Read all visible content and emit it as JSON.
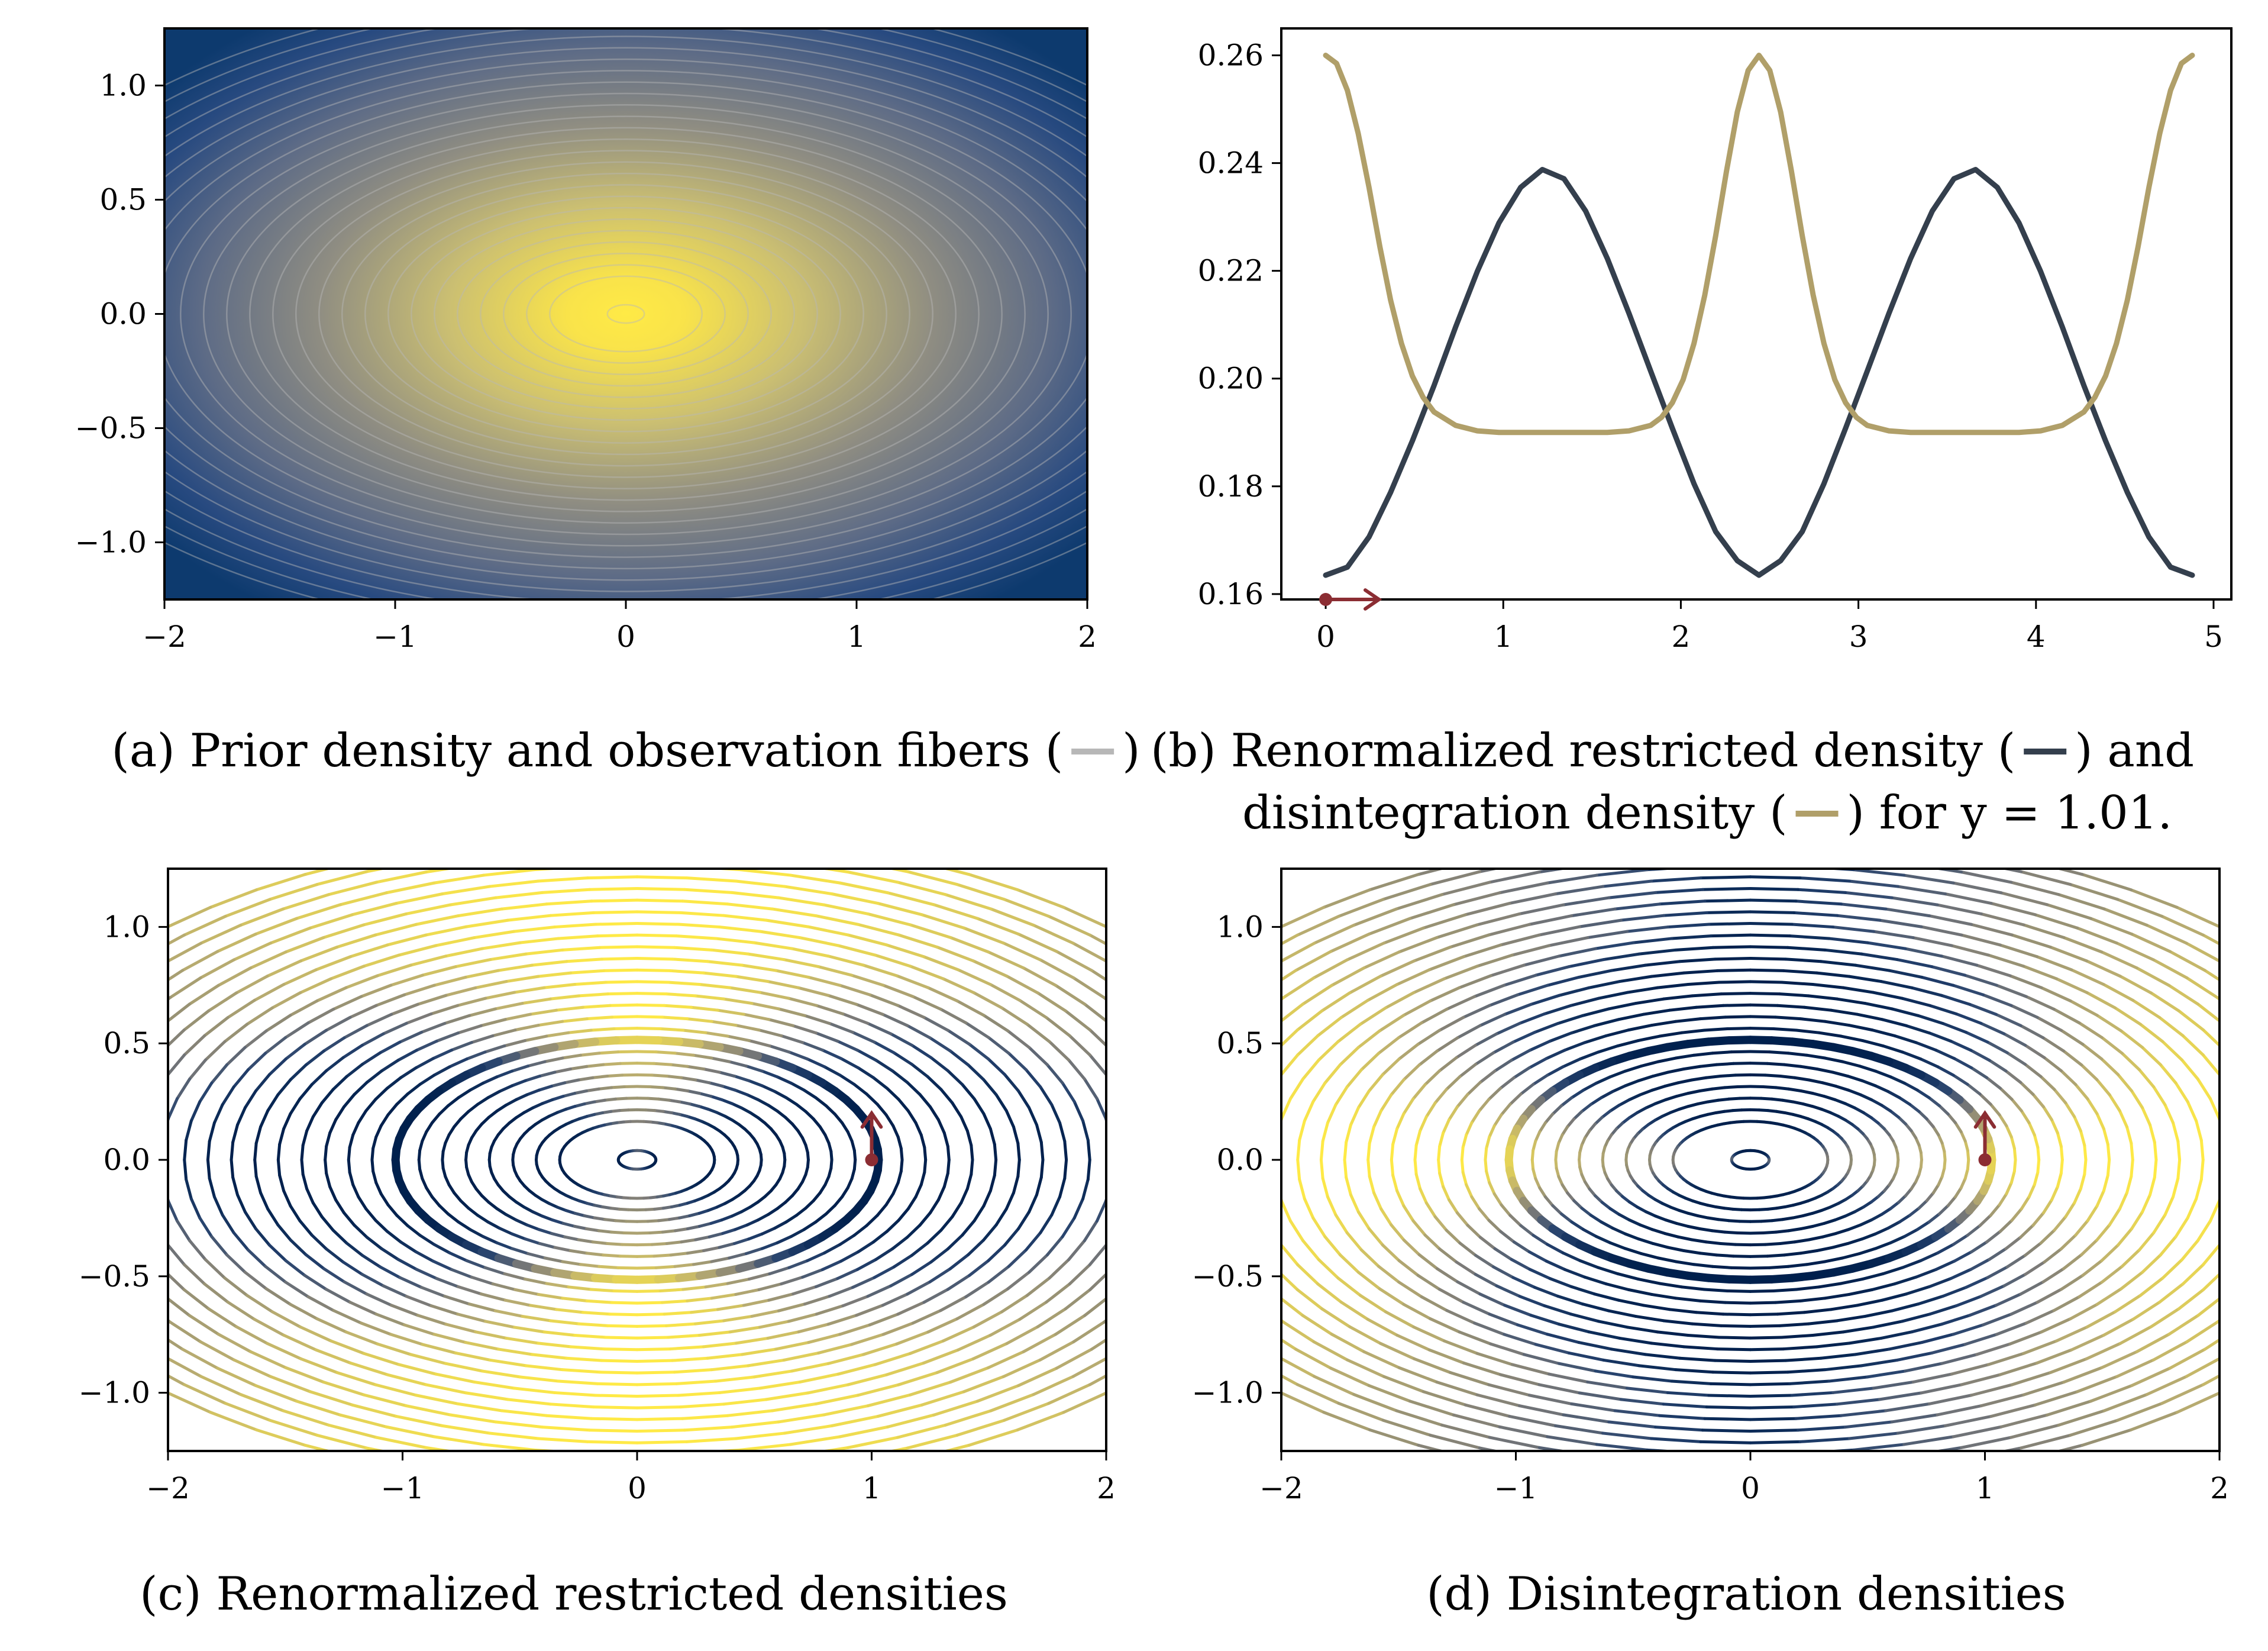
{
  "figure": {
    "colors": {
      "cividis_low": "#00204d",
      "cividis_mid": "#7c7b78",
      "cividis_high": "#ffea46",
      "fiber_gray": "#b7b7b7",
      "restricted_line": "#343f4d",
      "disintegration_line": "#b09f69",
      "arrow_red": "#8b2d33",
      "axis": "#000000"
    },
    "panels": {
      "a": {
        "caption": "(a) Prior density and observation fibers (",
        "caption_suffix": ")",
        "legend_icon": "gray-line"
      },
      "b": {
        "caption_line1": "(b) Renormalized restricted density (",
        "caption_mid": ") and",
        "caption_line2a": "disintegration density (",
        "caption_line2b": ") for y = 1.01.",
        "legend_icons": [
          "dark-line",
          "tan-line"
        ]
      },
      "c": {
        "caption": "(c) Renormalized restricted densities"
      },
      "d": {
        "caption": "(d) Disintegration densities"
      }
    }
  },
  "chart_data": [
    {
      "id": "a",
      "type": "heatmap",
      "title": "",
      "description_of_field": "2D Gaussian prior density (yellow peak at origin) with elliptical observation fibers x^2 + 4y^2 = c",
      "xlim": [
        -2,
        2
      ],
      "ylim": [
        -1.25,
        1.25
      ],
      "xticks": [
        -2,
        -1,
        0,
        1,
        2
      ],
      "xtick_labels": [
        "−2",
        "−1",
        "0",
        "1",
        "2"
      ],
      "yticks": [
        -1.0,
        -0.5,
        0.0,
        0.5,
        1.0
      ],
      "ytick_labels": [
        "−1.0",
        "−0.5",
        "0.0",
        "0.5",
        "1.0"
      ],
      "grid": false,
      "colormap": "cividis"
    },
    {
      "id": "b",
      "type": "line",
      "title": "",
      "xlim": [
        -0.25,
        5.1
      ],
      "ylim": [
        0.159,
        0.265
      ],
      "xticks": [
        0,
        1,
        2,
        3,
        4,
        5
      ],
      "xtick_labels": [
        "0",
        "1",
        "2",
        "3",
        "4",
        "5"
      ],
      "yticks": [
        0.16,
        0.18,
        0.2,
        0.22,
        0.24,
        0.26
      ],
      "ytick_labels": [
        "0.16",
        "0.18",
        "0.20",
        "0.22",
        "0.24",
        "0.26"
      ],
      "grid": false,
      "series": [
        {
          "key": "restricted",
          "x": [
            0.0,
            0.122,
            0.244,
            0.366,
            0.488,
            0.61,
            0.732,
            0.854,
            0.976,
            1.098,
            1.22,
            1.342,
            1.464,
            1.586,
            1.708,
            1.83,
            1.952,
            2.074,
            2.196,
            2.318,
            2.44,
            2.562,
            2.684,
            2.806,
            2.928,
            3.05,
            3.172,
            3.294,
            3.416,
            3.538,
            3.66,
            3.782,
            3.904,
            4.026,
            4.148,
            4.27,
            4.392,
            4.514,
            4.636,
            4.758,
            4.88
          ],
          "values": [
            0.1635,
            0.165,
            0.1706,
            0.1789,
            0.1884,
            0.1987,
            0.2096,
            0.2199,
            0.2289,
            0.2355,
            0.2388,
            0.2371,
            0.2311,
            0.2223,
            0.2121,
            0.2014,
            0.1908,
            0.1805,
            0.1716,
            0.1662,
            0.1635,
            0.1662,
            0.1716,
            0.1805,
            0.1908,
            0.2014,
            0.2121,
            0.2223,
            0.2311,
            0.2371,
            0.2388,
            0.2355,
            0.2289,
            0.2199,
            0.2096,
            0.1987,
            0.1884,
            0.1789,
            0.1706,
            0.165,
            0.1635
          ]
        },
        {
          "key": "disintegration",
          "x": [
            0.0,
            0.061,
            0.122,
            0.183,
            0.244,
            0.305,
            0.366,
            0.427,
            0.488,
            0.549,
            0.61,
            0.732,
            0.854,
            0.976,
            1.098,
            1.22,
            1.342,
            1.464,
            1.586,
            1.708,
            1.83,
            1.891,
            1.952,
            2.013,
            2.074,
            2.135,
            2.196,
            2.257,
            2.318,
            2.379,
            2.44,
            2.501,
            2.562,
            2.623,
            2.684,
            2.745,
            2.806,
            2.867,
            2.928,
            2.989,
            3.05,
            3.172,
            3.294,
            3.416,
            3.538,
            3.66,
            3.782,
            3.904,
            4.026,
            4.148,
            4.27,
            4.331,
            4.392,
            4.453,
            4.514,
            4.575,
            4.636,
            4.697,
            4.758,
            4.819,
            4.88
          ],
          "values": [
            0.26,
            0.2585,
            0.2535,
            0.2455,
            0.2355,
            0.2245,
            0.2145,
            0.2065,
            0.2005,
            0.1965,
            0.1938,
            0.1913,
            0.1903,
            0.19,
            0.19,
            0.19,
            0.19,
            0.19,
            0.19,
            0.1903,
            0.1913,
            0.1928,
            0.1955,
            0.1998,
            0.2065,
            0.2155,
            0.2265,
            0.2385,
            0.2495,
            0.2572,
            0.26,
            0.2572,
            0.2495,
            0.2385,
            0.2265,
            0.2155,
            0.2065,
            0.1998,
            0.1955,
            0.1928,
            0.1913,
            0.1903,
            0.19,
            0.19,
            0.19,
            0.19,
            0.19,
            0.19,
            0.1903,
            0.1913,
            0.1938,
            0.1965,
            0.2005,
            0.2065,
            0.2145,
            0.2245,
            0.2355,
            0.2455,
            0.2535,
            0.2585,
            0.26
          ]
        }
      ],
      "annotations": [
        {
          "type": "arrow",
          "from": [
            0,
            0.159
          ],
          "to": [
            0.3,
            0.159
          ],
          "marker": "dot",
          "color": "arrow_red"
        }
      ]
    },
    {
      "id": "c",
      "type": "heatmap",
      "title": "",
      "description_of_field": "Elliptical fiber contours x^2 + 4y^2 = c colored by renormalized restricted density (yellow near y-axis, dark near x-axis); highlighted fiber through (1, 0)",
      "xlim": [
        -2,
        2
      ],
      "ylim": [
        -1.25,
        1.25
      ],
      "xticks": [
        -2,
        -1,
        0,
        1,
        2
      ],
      "xtick_labels": [
        "−2",
        "−1",
        "0",
        "1",
        "2"
      ],
      "yticks": [
        -1.0,
        -0.5,
        0.0,
        0.5,
        1.0
      ],
      "ytick_labels": [
        "−1.0",
        "−0.5",
        "0.0",
        "0.5",
        "1.0"
      ],
      "grid": false,
      "colormap": "cividis",
      "annotations": [
        {
          "type": "arrow",
          "from": [
            1.0,
            0.0
          ],
          "to": [
            1.0,
            0.2
          ],
          "marker": "dot",
          "color": "arrow_red"
        }
      ]
    },
    {
      "id": "d",
      "type": "heatmap",
      "title": "",
      "description_of_field": "Elliptical fiber contours colored by disintegration density (yellow near x-axis and corners, dark near y-axis); highlighted fiber through (1, 0)",
      "xlim": [
        -2,
        2
      ],
      "ylim": [
        -1.25,
        1.25
      ],
      "xticks": [
        -2,
        -1,
        0,
        1,
        2
      ],
      "xtick_labels": [
        "−2",
        "−1",
        "0",
        "1",
        "2"
      ],
      "yticks": [
        -1.0,
        -0.5,
        0.0,
        0.5,
        1.0
      ],
      "ytick_labels": [
        "−1.0",
        "−0.5",
        "0.0",
        "0.5",
        "1.0"
      ],
      "grid": false,
      "colormap": "cividis",
      "annotations": [
        {
          "type": "arrow",
          "from": [
            1.0,
            0.0
          ],
          "to": [
            1.0,
            0.2
          ],
          "marker": "dot",
          "color": "arrow_red"
        }
      ]
    }
  ]
}
